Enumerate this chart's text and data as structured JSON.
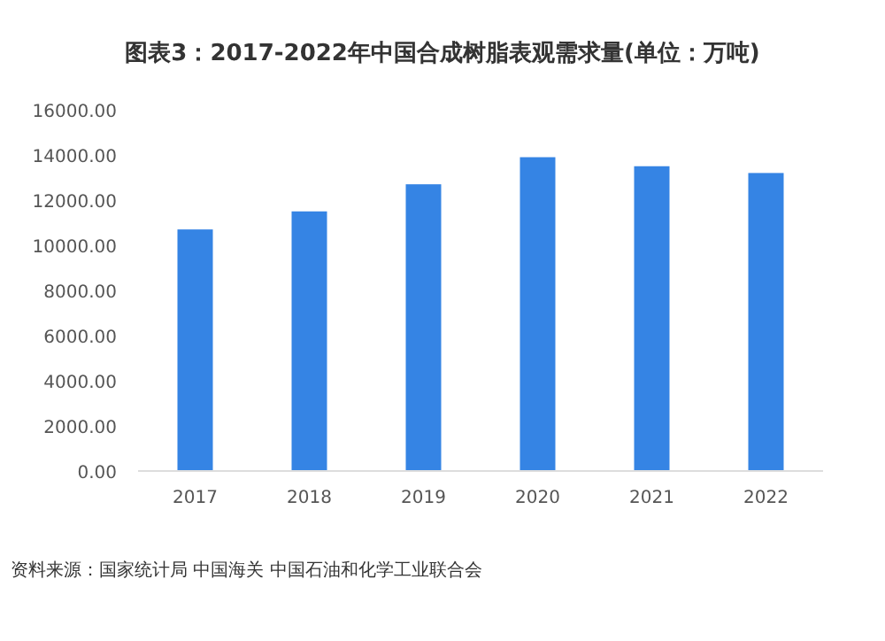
{
  "chart_data": {
    "type": "bar",
    "title": "图表3：2017-2022年中国合成树脂表观需求量(单位：万吨)",
    "categories": [
      "2017",
      "2018",
      "2019",
      "2020",
      "2021",
      "2022"
    ],
    "values": [
      10700,
      11500,
      12700,
      13900,
      13500,
      13200
    ],
    "color": "#3584e4",
    "ylim": [
      0,
      16000
    ],
    "yticks": [
      {
        "value": 0,
        "label": "0.00"
      },
      {
        "value": 2000,
        "label": "2000.00"
      },
      {
        "value": 4000,
        "label": "4000.00"
      },
      {
        "value": 6000,
        "label": "6000.00"
      },
      {
        "value": 8000,
        "label": "8000.00"
      },
      {
        "value": 10000,
        "label": "10000.00"
      },
      {
        "value": 12000,
        "label": "12000.00"
      },
      {
        "value": 14000,
        "label": "14000.00"
      },
      {
        "value": 16000,
        "label": "16000.00"
      }
    ],
    "annotations": [
      "资料来源：国家统计局 中国海关 中国石油和化学工业联合会"
    ]
  }
}
